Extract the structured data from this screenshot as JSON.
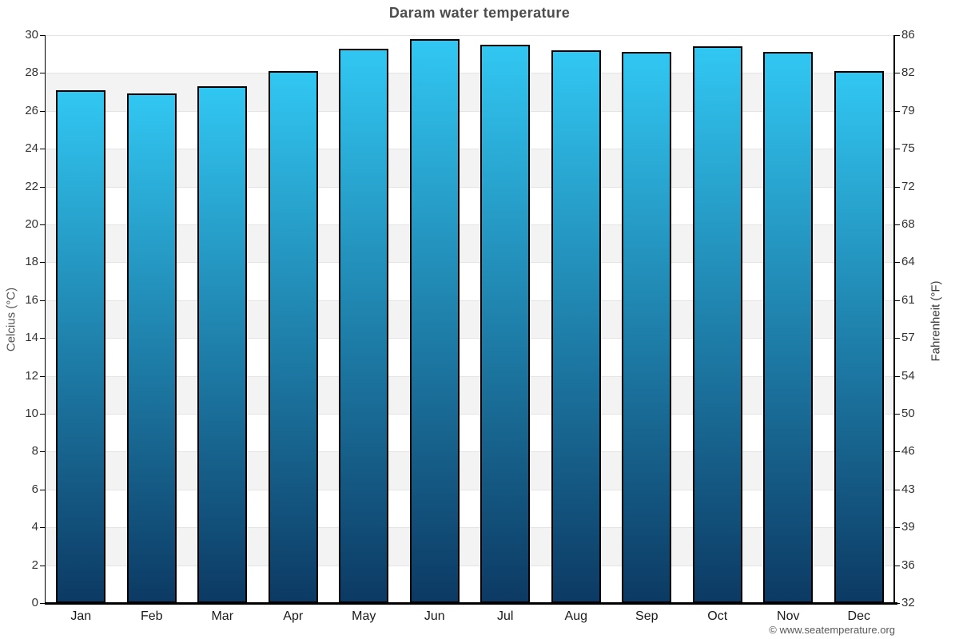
{
  "copyright": "© www.seatemperature.org",
  "chart_data": {
    "type": "bar",
    "title": "Daram water temperature",
    "categories": [
      "Jan",
      "Feb",
      "Mar",
      "Apr",
      "May",
      "Jun",
      "Jul",
      "Aug",
      "Sep",
      "Oct",
      "Nov",
      "Dec"
    ],
    "values": [
      27.1,
      26.9,
      27.3,
      28.1,
      29.3,
      29.8,
      29.5,
      29.2,
      29.1,
      29.4,
      29.1,
      28.1
    ],
    "ylabel_left": "Celcius (°C)",
    "ylabel_right": "Fahrenheit (°F)",
    "ylim": [
      0,
      30
    ],
    "yticks_celsius": [
      0,
      2,
      4,
      6,
      8,
      10,
      12,
      14,
      16,
      18,
      20,
      22,
      24,
      26,
      28,
      30
    ],
    "yticks_fahrenheit": [
      "32",
      "36",
      "39",
      "43",
      "46",
      "50",
      "54",
      "57",
      "61",
      "64",
      "68",
      "72",
      "75",
      "79",
      "82",
      "86"
    ],
    "grid": "alternating horizontal bands every 2°C, gray bands from 28-26 downward",
    "legend": "none",
    "colors": {
      "bar_top": "#31c7f2",
      "bar_bottom": "#0c3a64",
      "bar_border": "#000000",
      "band": "#f3f3f3",
      "gridline": "#e4e4e4",
      "axis": "#000000",
      "title_text": "#4d4d4d",
      "tick_label": "#333333",
      "month_label": "#1a1a1a",
      "copyright_text": "#595959"
    }
  }
}
